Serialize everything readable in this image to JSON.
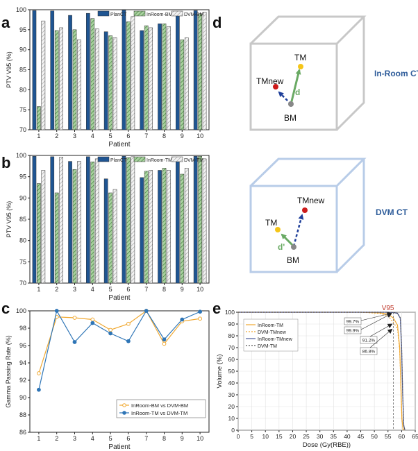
{
  "panel_letters": {
    "a": "a",
    "b": "b",
    "c": "c",
    "d": "d",
    "e": "e"
  },
  "chart_data": [
    {
      "id": "a",
      "type": "bar",
      "title": "",
      "xlabel": "Patient",
      "ylabel": "PTV V95 (%)",
      "ylim": [
        70,
        100
      ],
      "yticks": [
        70,
        75,
        80,
        85,
        90,
        95,
        100
      ],
      "categories": [
        "1",
        "2",
        "3",
        "4",
        "5",
        "6",
        "7",
        "8",
        "9",
        "10"
      ],
      "legend_position": "top-right",
      "series": [
        {
          "name": "PlanCT",
          "style": "solid",
          "color": "#1f5592",
          "values": [
            99.8,
            99.7,
            98.6,
            99.1,
            94.5,
            99.9,
            94.8,
            96.5,
            98.6,
            99.8
          ]
        },
        {
          "name": "InRoom-BM",
          "style": "hatch-green",
          "color": "#5fa05a",
          "values": [
            75.8,
            94.8,
            95.0,
            97.8,
            93.5,
            97.0,
            96.0,
            96.5,
            92.5,
            99.0
          ]
        },
        {
          "name": "DVM-BM",
          "style": "hatch-gray",
          "color": "#c8c8c8",
          "values": [
            97.2,
            95.5,
            92.5,
            95.2,
            93.0,
            98.3,
            95.5,
            95.8,
            93.0,
            99.4
          ]
        }
      ]
    },
    {
      "id": "b",
      "type": "bar",
      "title": "",
      "xlabel": "Patient",
      "ylabel": "PTV V95 (%)",
      "ylim": [
        70,
        100
      ],
      "yticks": [
        70,
        75,
        80,
        85,
        90,
        95,
        100
      ],
      "categories": [
        "1",
        "2",
        "3",
        "4",
        "5",
        "6",
        "7",
        "8",
        "9",
        "10"
      ],
      "legend_position": "top-right",
      "series": [
        {
          "name": "PlanCT",
          "style": "solid",
          "color": "#1f5592",
          "values": [
            99.8,
            99.7,
            98.6,
            99.7,
            94.5,
            99.8,
            94.8,
            96.5,
            98.6,
            99.8
          ]
        },
        {
          "name": "InRoom-TM",
          "style": "hatch-green",
          "color": "#5fa05a",
          "values": [
            93.4,
            91.2,
            96.7,
            98.5,
            91.2,
            99.5,
            96.3,
            97.0,
            95.6,
            99.8
          ]
        },
        {
          "name": "DVM-TM",
          "style": "hatch-gray",
          "color": "#c8c8c8",
          "values": [
            96.5,
            99.6,
            98.6,
            99.2,
            92.0,
            99.7,
            96.5,
            96.5,
            97.0,
            99.2
          ]
        }
      ]
    },
    {
      "id": "c",
      "type": "line",
      "title": "",
      "xlabel": "Patient",
      "ylabel": "Gamma Passing Rate (%)",
      "ylim": [
        86,
        100
      ],
      "yticks": [
        86,
        88,
        90,
        92,
        94,
        96,
        98,
        100
      ],
      "x": [
        1,
        2,
        3,
        4,
        5,
        6,
        7,
        8,
        9,
        10
      ],
      "legend_position": "bottom-right",
      "series": [
        {
          "name": "InRoom-BM vs DVM-BM",
          "color": "#f0a830",
          "marker": "open-circle",
          "values": [
            92.8,
            99.3,
            99.2,
            99.0,
            97.8,
            98.5,
            100,
            96.2,
            98.8,
            99.1
          ]
        },
        {
          "name": "InRoom-TM vs DVM-TM",
          "color": "#2e75b6",
          "marker": "filled-circle",
          "values": [
            90.9,
            100,
            96.4,
            98.6,
            97.4,
            96.5,
            100,
            96.7,
            99.0,
            99.9
          ]
        }
      ]
    },
    {
      "id": "e",
      "type": "line",
      "title": "",
      "xlabel": "Dose (Gy(RBE))",
      "ylabel": "Volume (%)",
      "xlim": [
        0,
        65
      ],
      "ylim": [
        0,
        100
      ],
      "xticks": [
        0,
        5,
        10,
        15,
        20,
        25,
        30,
        35,
        40,
        45,
        50,
        55,
        60,
        65
      ],
      "yticks": [
        0,
        10,
        20,
        30,
        40,
        50,
        60,
        70,
        80,
        90,
        100
      ],
      "legend_position": "top-left",
      "series": [
        {
          "name": "InRoom-TM",
          "color": "#f0a830",
          "dash": "solid",
          "x": [
            0,
            45,
            52,
            55,
            57,
            58.5,
            59.3,
            59.7,
            60.1,
            60.5,
            61
          ],
          "values": [
            100,
            100,
            99.5,
            98.5,
            95,
            89,
            70,
            40,
            10,
            1,
            0
          ]
        },
        {
          "name": "DVM-TMnew",
          "color": "#f0a830",
          "dash": "dotted",
          "x": [
            0,
            45,
            52,
            55,
            57,
            58.5,
            59.3,
            59.7,
            60.1,
            60.5,
            61
          ],
          "values": [
            100,
            100,
            99,
            97,
            91.2,
            86,
            68,
            40,
            10,
            1,
            0
          ]
        },
        {
          "name": "InRoom-TMnew",
          "color": "#4a5a9a",
          "dash": "solid",
          "x": [
            0,
            55,
            57,
            58.5,
            59.5,
            60,
            60.4,
            60.8,
            61.2
          ],
          "values": [
            100,
            100,
            99.7,
            99,
            95,
            70,
            30,
            4,
            0
          ]
        },
        {
          "name": "DVM-TM",
          "color": "#555555",
          "dash": "dotted",
          "x": [
            0,
            55,
            57,
            58.5,
            59.5,
            60,
            60.4,
            60.8,
            61.2
          ],
          "values": [
            100,
            100,
            99.9,
            99.2,
            95.5,
            71,
            31,
            4,
            0
          ]
        }
      ],
      "reference_line": {
        "label": "V95",
        "dose": 57,
        "color": "#c0392b"
      },
      "annotations": [
        "99.7%",
        "99.9%",
        "91.2%",
        "86.8%"
      ]
    }
  ],
  "diagram_d": {
    "boxes": [
      {
        "label": "In-Room CT",
        "points": {
          "tm": "TM",
          "tmnew": "TMnew",
          "bm": "BM",
          "vector": "d"
        }
      },
      {
        "label": "DVM CT",
        "points": {
          "tm": "TM",
          "tmnew": "TMnew",
          "bm": "BM",
          "vector": "d'"
        }
      }
    ],
    "colors": {
      "box1": "#c8c8c8",
      "box2": "#b8cce8",
      "label": "#2e5c9a",
      "tm": "#f5c518",
      "tmnew": "#cc1b1b",
      "bm": "#888888",
      "green": "#6aaa64",
      "blue": "#1f3f9a"
    }
  }
}
